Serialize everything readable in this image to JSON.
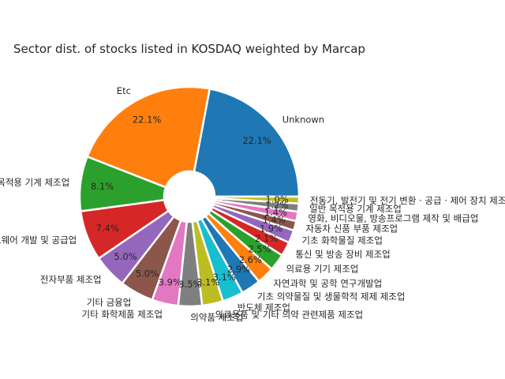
{
  "chart_data": {
    "type": "pie",
    "title": "Sector dist. of stocks listed in KOSDAQ weighted by Marcap",
    "donut": true,
    "start_angle_deg": 0,
    "direction": "counterclockwise",
    "slices": [
      {
        "label": "Unknown",
        "pct_label": "22.1%",
        "value": 22.1,
        "color": "#1f77b4"
      },
      {
        "label": "Etc",
        "pct_label": "22.1%",
        "value": 22.1,
        "color": "#ff7f0e"
      },
      {
        "label": "특수 목적용 기계 제조업",
        "pct_label": "8.1%",
        "value": 8.1,
        "color": "#2ca02c"
      },
      {
        "label": "소프트웨어 개발 및 공급업",
        "pct_label": "7.4%",
        "value": 7.4,
        "color": "#d62728"
      },
      {
        "label": "전자부품 제조업",
        "pct_label": "5.0%",
        "value": 5.0,
        "color": "#9467bd"
      },
      {
        "label": "기타 금융업",
        "pct_label": "5.0%",
        "value": 5.0,
        "color": "#8c564b"
      },
      {
        "label": "기타 화학제품 제조업",
        "pct_label": "3.9%",
        "value": 3.9,
        "color": "#e377c2"
      },
      {
        "label": "의약품 제조업",
        "pct_label": "3.5%",
        "value": 3.5,
        "color": "#7f7f7f"
      },
      {
        "label": "의료용품 및 기타 의약 관련제품 제조업",
        "pct_label": "3.1%",
        "value": 3.1,
        "color": "#bcbd22"
      },
      {
        "label": "반도체 제조업",
        "pct_label": "3.1%",
        "value": 3.1,
        "color": "#17becf"
      },
      {
        "label": "기초 의약물질 및 생물학적 제제 제조업",
        "pct_label": "2.9%",
        "value": 2.9,
        "color": "#1f77b4"
      },
      {
        "label": "자연과학 및 공학 연구개발업",
        "pct_label": "2.6%",
        "value": 2.6,
        "color": "#ff7f0e"
      },
      {
        "label": "의료용 기기 제조업",
        "pct_label": "2.5%",
        "value": 2.5,
        "color": "#2ca02c"
      },
      {
        "label": "통신 및 방송 장비 제조업",
        "pct_label": "2.1%",
        "value": 2.1,
        "color": "#d62728"
      },
      {
        "label": "기초 화학물질 제조업",
        "pct_label": "1.9%",
        "value": 1.9,
        "color": "#9467bd"
      },
      {
        "label": "자동차 신품 부품 제조업",
        "pct_label": "1.4%",
        "value": 1.4,
        "color": "#8c564b"
      },
      {
        "label": "영화, 비디오물, 방송프로그램 제작 및 배급업",
        "pct_label": "1.4%",
        "value": 1.4,
        "color": "#e377c2"
      },
      {
        "label": "일반 목적용 기계 제조업",
        "pct_label": "1.2%",
        "value": 1.2,
        "color": "#7f7f7f"
      },
      {
        "label": "전동기, 발전기 및 전기 변환 · 공급 · 제어 장치 제조업",
        "pct_label": "1.0%",
        "value": 1.0,
        "color": "#bcbd22"
      }
    ]
  }
}
